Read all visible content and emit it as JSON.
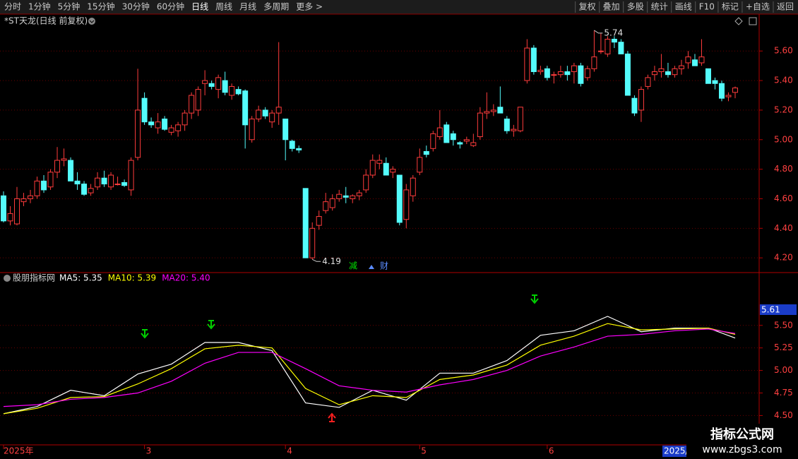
{
  "toolbar": {
    "left": [
      "分时",
      "1分钟",
      "5分钟",
      "15分钟",
      "30分钟",
      "60分钟",
      "日线",
      "周线",
      "月线",
      "多周期",
      "更多 >"
    ],
    "right": [
      "复权",
      "叠加",
      "多股",
      "统计",
      "画线",
      "F10",
      "标记",
      "+自选",
      "返回"
    ]
  },
  "markers": [
    "减",
    "财"
  ],
  "cursor": {
    "date": "2025/",
    "price": "5.61"
  },
  "watermark": {
    "name": "指标公式网",
    "url": "www.zbgs3.com"
  },
  "chart_data": [
    {
      "type": "candlestick",
      "title": "*ST天龙(日线 前复权)",
      "categories": [
        "2025年",
        null,
        null,
        null,
        null,
        null,
        null,
        null,
        null,
        null,
        null,
        null,
        null,
        null,
        null,
        null,
        null,
        null,
        null,
        null,
        null,
        "3",
        null,
        null,
        null,
        null,
        null,
        null,
        null,
        null,
        null,
        null,
        null,
        null,
        null,
        null,
        null,
        null,
        null,
        null,
        null,
        null,
        "4",
        null,
        null,
        null,
        null,
        null,
        null,
        null,
        null,
        null,
        null,
        null,
        null,
        null,
        null,
        null,
        null,
        null,
        null,
        null,
        "5",
        null,
        null,
        null,
        null,
        null,
        null,
        null,
        null,
        null,
        null,
        null,
        null,
        null,
        null,
        null,
        null,
        null,
        null,
        "6",
        null,
        null,
        null,
        null,
        null,
        null,
        null,
        null,
        null,
        null,
        null,
        null,
        null,
        null,
        null,
        null,
        null,
        null,
        null,
        null,
        null,
        null,
        null,
        null,
        null,
        null,
        null,
        null
      ],
      "open": [
        4.62,
        4.45,
        4.43,
        4.58,
        4.6,
        4.62,
        4.72,
        4.68,
        4.78,
        4.86,
        4.86,
        4.72,
        4.7,
        4.64,
        4.68,
        4.74,
        4.68,
        4.7,
        4.71,
        4.66,
        4.88,
        5.28,
        5.12,
        5.08,
        5.14,
        5.05,
        5.06,
        5.1,
        5.18,
        5.2,
        5.38,
        5.38,
        5.34,
        5.4,
        5.3,
        5.34,
        5.33,
        5.0,
        5.14,
        5.2,
        5.12,
        5.18,
        5.14,
        4.99,
        4.94,
        4.67,
        4.2,
        4.42,
        4.52,
        4.54,
        4.6,
        4.62,
        4.6,
        4.62,
        4.66,
        4.76,
        4.84,
        4.84,
        4.78,
        4.76,
        4.46,
        4.62,
        4.78,
        4.92,
        4.94,
        5.02,
        5.1,
        5.04,
        4.98,
        4.99,
        4.96,
        5.02,
        5.18,
        5.19,
        5.22,
        5.14,
        5.06,
        5.06,
        5.4,
        5.62,
        5.46,
        5.48,
        5.44,
        5.44,
        5.46,
        5.46,
        5.5,
        5.42,
        5.48,
        5.6,
        5.58,
        5.68,
        5.66,
        5.58,
        5.28,
        5.2,
        5.36,
        5.44,
        5.46,
        5.46,
        5.44,
        5.48,
        5.52,
        5.54,
        5.52,
        5.48,
        5.4,
        5.38,
        5.29,
        5.32
      ],
      "high": [
        4.65,
        4.55,
        4.68,
        4.64,
        4.66,
        4.75,
        4.76,
        4.8,
        4.95,
        4.94,
        4.88,
        4.78,
        4.72,
        4.7,
        4.78,
        4.79,
        4.78,
        4.75,
        4.73,
        4.88,
        5.48,
        5.32,
        5.15,
        5.18,
        5.16,
        5.1,
        5.12,
        5.2,
        5.32,
        5.36,
        5.47,
        5.4,
        5.44,
        5.46,
        5.38,
        5.36,
        5.34,
        5.16,
        5.23,
        5.22,
        5.2,
        5.66,
        5.14,
        5.0,
        4.96,
        4.67,
        4.44,
        4.52,
        4.64,
        4.63,
        4.66,
        4.68,
        4.63,
        4.66,
        4.8,
        4.9,
        4.9,
        4.88,
        4.82,
        4.76,
        4.7,
        4.76,
        4.94,
        4.96,
        5.06,
        5.2,
        5.12,
        5.06,
        4.99,
        5.02,
        5.04,
        5.22,
        5.32,
        5.24,
        5.36,
        5.16,
        5.1,
        5.22,
        5.68,
        5.64,
        5.5,
        5.5,
        5.46,
        5.5,
        5.5,
        5.52,
        5.52,
        5.5,
        5.74,
        5.72,
        5.7,
        5.7,
        5.68,
        5.6,
        5.3,
        5.36,
        5.44,
        5.5,
        5.58,
        5.52,
        5.5,
        5.54,
        5.6,
        5.58,
        5.68,
        5.48,
        5.42,
        5.4,
        5.32,
        5.36
      ],
      "low": [
        4.44,
        4.42,
        4.42,
        4.55,
        4.57,
        4.6,
        4.64,
        4.66,
        4.74,
        4.82,
        4.72,
        4.66,
        4.62,
        4.62,
        4.66,
        4.68,
        4.66,
        4.69,
        4.68,
        4.62,
        4.86,
        5.1,
        5.08,
        5.04,
        5.06,
        5.03,
        5.02,
        5.06,
        5.14,
        5.16,
        5.3,
        5.34,
        5.28,
        5.3,
        5.27,
        5.3,
        4.94,
        4.98,
        5.12,
        5.14,
        5.08,
        5.1,
        4.86,
        4.92,
        4.91,
        4.2,
        4.19,
        4.39,
        4.5,
        4.52,
        4.58,
        4.57,
        4.57,
        4.59,
        4.64,
        4.74,
        4.8,
        4.76,
        4.74,
        4.42,
        4.4,
        4.58,
        4.76,
        4.88,
        4.92,
        5.0,
        4.98,
        4.96,
        4.94,
        4.97,
        4.95,
        5.0,
        5.14,
        5.16,
        5.18,
        5.04,
        5.02,
        5.05,
        5.38,
        5.44,
        5.44,
        5.4,
        5.38,
        5.42,
        5.4,
        5.38,
        5.36,
        5.4,
        5.46,
        5.58,
        5.56,
        5.62,
        5.58,
        5.3,
        5.16,
        5.12,
        5.34,
        5.4,
        5.42,
        5.42,
        5.42,
        5.44,
        5.48,
        5.5,
        5.5,
        5.38,
        5.34,
        5.26,
        5.26,
        5.28
      ],
      "close": [
        4.45,
        4.5,
        4.6,
        4.6,
        4.62,
        4.72,
        4.66,
        4.78,
        4.86,
        4.87,
        4.72,
        4.7,
        4.63,
        4.67,
        4.74,
        4.7,
        4.76,
        4.7,
        4.69,
        4.86,
        5.2,
        5.12,
        5.1,
        5.12,
        5.07,
        5.08,
        5.1,
        5.18,
        5.3,
        5.34,
        5.4,
        5.36,
        5.42,
        5.32,
        5.36,
        5.31,
        5.1,
        5.14,
        5.2,
        5.16,
        5.18,
        5.22,
        5.0,
        4.94,
        4.93,
        4.2,
        4.4,
        4.48,
        4.58,
        4.6,
        4.63,
        4.61,
        4.62,
        4.64,
        4.76,
        4.86,
        4.86,
        4.76,
        4.8,
        4.44,
        4.66,
        4.74,
        4.88,
        4.9,
        5.04,
        5.08,
        4.98,
        5.0,
        4.97,
        5.0,
        4.98,
        5.18,
        5.19,
        5.2,
        5.18,
        5.06,
        5.07,
        5.22,
        5.62,
        5.46,
        5.47,
        5.42,
        5.44,
        5.46,
        5.44,
        5.5,
        5.38,
        5.48,
        5.56,
        5.6,
        5.68,
        5.66,
        5.58,
        5.3,
        5.18,
        5.34,
        5.42,
        5.46,
        5.48,
        5.44,
        5.48,
        5.5,
        5.56,
        5.5,
        5.56,
        5.38,
        5.38,
        5.28,
        5.3,
        5.35
      ],
      "up_color": "#ff3c3c",
      "down_color": "#54fcfc",
      "annotations": [
        "5.74",
        "4.19"
      ],
      "ylim": [
        4.11,
        5.84
      ],
      "yticks": [
        {
          "value": 4.2,
          "label": "4.20"
        },
        {
          "value": 4.4,
          "label": "4.40"
        },
        {
          "value": 4.6,
          "label": "4.60"
        },
        {
          "value": 4.8,
          "label": "4.80"
        },
        {
          "value": 5.0,
          "label": "5.00"
        },
        {
          "value": 5.2,
          "label": "5.20"
        },
        {
          "value": 5.4,
          "label": "5.40"
        },
        {
          "value": 5.6,
          "label": "5.60"
        }
      ],
      "grid": true
    },
    {
      "type": "line",
      "title": "股朋指标网",
      "x": [
        0,
        5,
        10,
        15,
        20,
        25,
        30,
        35,
        40,
        45,
        50,
        55,
        60,
        65,
        70,
        75,
        80,
        85,
        90,
        95,
        100,
        105,
        109
      ],
      "xlim": [
        0,
        109
      ],
      "series": [
        {
          "name": "MA5: 5.35",
          "color": "#ffffff",
          "values": [
            4.52,
            4.6,
            4.78,
            4.72,
            4.96,
            5.07,
            5.31,
            5.31,
            5.22,
            4.64,
            4.59,
            4.78,
            4.67,
            4.97,
            4.97,
            5.11,
            5.39,
            5.44,
            5.6,
            5.43,
            5.47,
            5.47,
            5.36
          ]
        },
        {
          "name": "MA10: 5.39",
          "color": "#ffff00",
          "values": [
            4.52,
            4.58,
            4.7,
            4.71,
            4.85,
            5.02,
            5.24,
            5.28,
            5.25,
            4.8,
            4.62,
            4.72,
            4.7,
            4.9,
            4.95,
            5.06,
            5.28,
            5.38,
            5.52,
            5.45,
            5.46,
            5.47,
            5.4
          ]
        },
        {
          "name": "MA20: 5.40",
          "color": "#ff00ff",
          "values": [
            4.6,
            4.62,
            4.68,
            4.7,
            4.75,
            4.88,
            5.08,
            5.2,
            5.2,
            5.02,
            4.83,
            4.78,
            4.76,
            4.84,
            4.9,
            5.0,
            5.16,
            5.26,
            5.38,
            5.4,
            5.44,
            5.46,
            5.41
          ]
        }
      ],
      "ylim": [
        4.19,
        6.07
      ],
      "yticks": [
        {
          "value": 4.5,
          "label": "4.50"
        },
        {
          "value": 4.75,
          "label": "4.75"
        },
        {
          "value": 5.0,
          "label": "5.00"
        },
        {
          "value": 5.25,
          "label": "5.25"
        },
        {
          "value": 5.5,
          "label": "5.50"
        }
      ],
      "grid": true
    }
  ]
}
